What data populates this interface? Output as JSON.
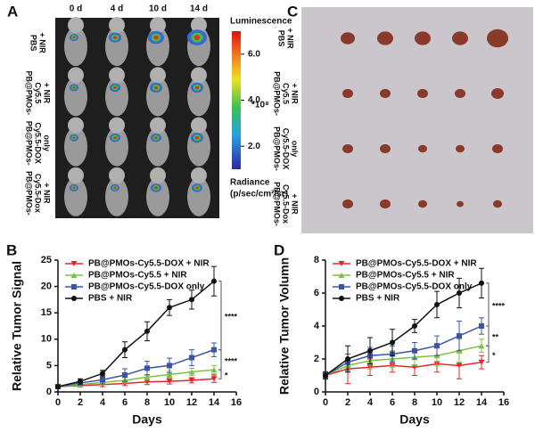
{
  "panel_a": {
    "letter": "A",
    "columns": [
      "0 d",
      "4 d",
      "10 d",
      "14 d"
    ],
    "rows": [
      [
        "PBS",
        "+ NIR"
      ],
      [
        "PB@PMOs-",
        "Cy5.5",
        "+ NIR"
      ],
      [
        "PB@PMOs-",
        "Cy5.5-DOX",
        "only"
      ],
      [
        "PB@PMOs-",
        "Cy5.5-Dox",
        "+ NIR"
      ]
    ],
    "colorbar": {
      "title": "Luminescence",
      "lim": [
        1,
        7
      ],
      "ticks": [
        {
          "value": 6,
          "label": "6.0"
        },
        {
          "value": 4,
          "label": "4.0"
        },
        {
          "value": 2,
          "label": "2.0"
        }
      ],
      "unit": "*10⁸",
      "label_lines": [
        "Radiance",
        "(p/sec/cm²/sr)"
      ]
    }
  },
  "panel_c": {
    "letter": "C",
    "rows": [
      [
        "PBS",
        "+ NIR"
      ],
      [
        "PB@PMOs-",
        "Cy5.5",
        "+ NIR"
      ],
      [
        "PB@PMOs-",
        "Cy5.5-DOX",
        "only"
      ],
      [
        "PB@PMOs-",
        "Cy5.5-Dox",
        "+ NIR"
      ]
    ]
  },
  "chart_data": [
    {
      "type": "line",
      "letter": "B",
      "ylabel": "Relative Tumor Signal",
      "xlabel": "Days",
      "x": [
        0,
        2,
        4,
        6,
        8,
        10,
        12,
        14
      ],
      "xlim": [
        0,
        16
      ],
      "xticks": [
        0,
        2,
        4,
        6,
        8,
        10,
        12,
        14,
        16
      ],
      "ylim": [
        0,
        25
      ],
      "yticks": [
        0,
        5,
        10,
        15,
        20,
        25
      ],
      "series": [
        {
          "name": "PB@PMOs-Cy5.5-DOX + NIR",
          "color": "#e8242a",
          "marker": "triangle-down",
          "values": [
            1,
            1.2,
            1.4,
            1.6,
            1.9,
            2.0,
            2.2,
            2.5
          ],
          "errors": [
            0.2,
            0.3,
            0.4,
            0.4,
            0.5,
            0.5,
            0.5,
            0.7
          ]
        },
        {
          "name": "PB@PMOs-Cy5.5 + NIR",
          "color": "#7cc242",
          "marker": "triangle-up",
          "values": [
            1,
            1.4,
            1.8,
            2.2,
            2.8,
            3.3,
            3.8,
            4.2
          ],
          "errors": [
            0.2,
            0.3,
            0.4,
            0.5,
            0.5,
            0.6,
            0.7,
            0.8
          ]
        },
        {
          "name": "PB@PMOs-Cy5.5-DOX only",
          "color": "#3a55a4",
          "marker": "square",
          "values": [
            1,
            1.7,
            2.3,
            3.2,
            4.5,
            5,
            6.5,
            8
          ],
          "errors": [
            0.2,
            0.4,
            0.8,
            1.2,
            1.3,
            1.4,
            1.5,
            1.3
          ]
        },
        {
          "name": "PBS + NIR",
          "color": "#111111",
          "marker": "circle",
          "values": [
            1,
            2,
            3.5,
            8,
            11.5,
            16,
            17.5,
            21
          ],
          "errors": [
            0.2,
            0.5,
            0.6,
            1.5,
            1.8,
            1.5,
            1.8,
            2.8
          ]
        }
      ],
      "annotations": [
        "****",
        "****",
        "*"
      ]
    },
    {
      "type": "line",
      "letter": "D",
      "ylabel": "Relative Tumor Volumn",
      "xlabel": "Days",
      "x": [
        0,
        2,
        4,
        6,
        8,
        10,
        12,
        14
      ],
      "xlim": [
        0,
        16
      ],
      "xticks": [
        0,
        2,
        4,
        6,
        8,
        10,
        12,
        14,
        16
      ],
      "ylim": [
        0,
        8
      ],
      "yticks": [
        0,
        2,
        4,
        6,
        8
      ],
      "series": [
        {
          "name": "PB@PMOs-Cy5.5-DOX + NIR",
          "color": "#e8242a",
          "marker": "triangle-down",
          "values": [
            1,
            1.4,
            1.5,
            1.6,
            1.5,
            1.7,
            1.6,
            1.8
          ],
          "errors": [
            0.2,
            0.9,
            0.5,
            0.4,
            0.5,
            0.5,
            0.8,
            0.4
          ]
        },
        {
          "name": "PB@PMOs-Cy5.5 + NIR",
          "color": "#7cc242",
          "marker": "triangle-up",
          "values": [
            1,
            1.6,
            1.9,
            2.0,
            2.1,
            2.2,
            2.5,
            2.8
          ],
          "errors": [
            0.2,
            0.4,
            0.5,
            0.5,
            0.5,
            0.6,
            0.7,
            0.4
          ]
        },
        {
          "name": "PB@PMOs-Cy5.5-DOX only",
          "color": "#3a55a4",
          "marker": "square",
          "values": [
            1,
            1.8,
            2.2,
            2.3,
            2.5,
            2.8,
            3.4,
            4.0
          ],
          "errors": [
            0.2,
            0.5,
            0.5,
            0.5,
            0.5,
            0.6,
            0.9,
            0.5
          ]
        },
        {
          "name": "PBS + NIR",
          "color": "#111111",
          "marker": "circle",
          "values": [
            1,
            2.0,
            2.5,
            3.0,
            4.0,
            5.3,
            6.0,
            6.6
          ],
          "errors": [
            0.2,
            0.8,
            0.8,
            0.8,
            0.4,
            0.8,
            0.9,
            0.9
          ]
        }
      ],
      "annotations": [
        "****",
        "**",
        "*"
      ]
    }
  ]
}
